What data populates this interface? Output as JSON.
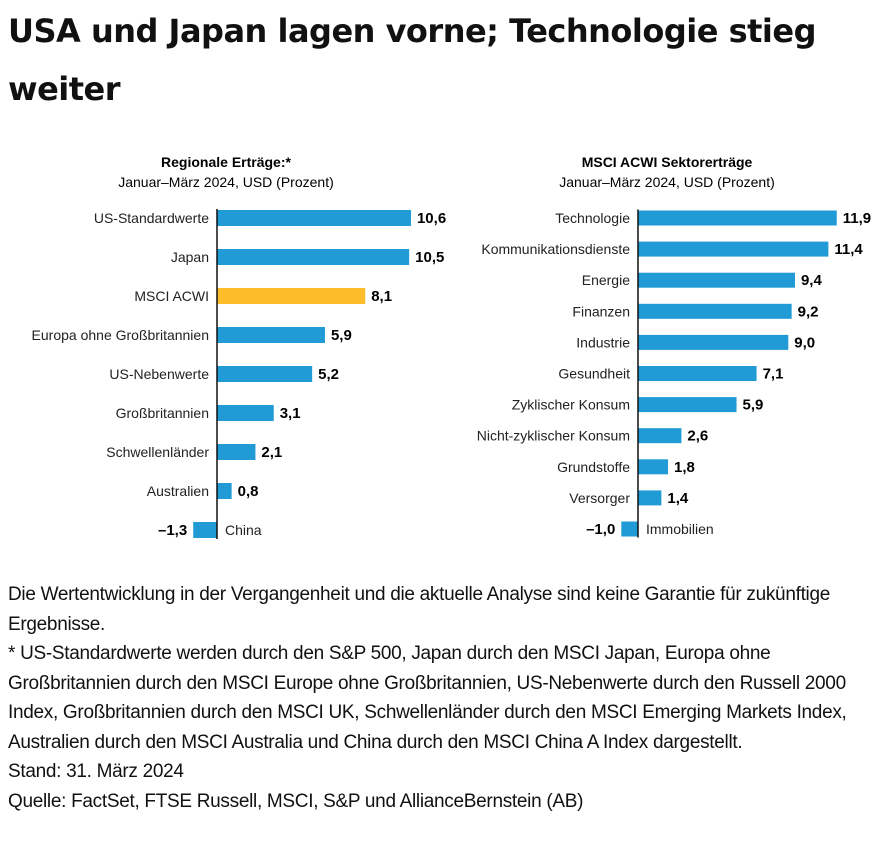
{
  "title": "USA und Japan lagen vorne; Technologie stieg weiter",
  "colors": {
    "bar": "#209bd6",
    "highlight": "#fdbd2a",
    "axis": "#111111"
  },
  "chart_data": [
    {
      "type": "bar",
      "orientation": "horizontal",
      "title": "Regionale Erträge:*",
      "subtitle": "Januar–März 2024, USD (Prozent)",
      "categories": [
        "US-Standardwerte",
        "Japan",
        "MSCI ACWI",
        "Europa ohne Großbritannien",
        "US-Nebenwerte",
        "Großbritannien",
        "Schwellenländer",
        "Australien",
        "China"
      ],
      "values": [
        10.6,
        10.5,
        8.1,
        5.9,
        5.2,
        3.1,
        2.1,
        0.8,
        -1.3
      ],
      "value_labels": [
        "10,6",
        "10,5",
        "8,1",
        "5,9",
        "5,2",
        "3,1",
        "2,1",
        "0,8",
        "–1,3"
      ],
      "highlight": "MSCI ACWI",
      "grid": false
    },
    {
      "type": "bar",
      "orientation": "horizontal",
      "title": "MSCI ACWI Sektorerträge",
      "subtitle": "Januar–März 2024, USD (Prozent)",
      "categories": [
        "Technologie",
        "Kommunikationsdienste",
        "Energie",
        "Finanzen",
        "Industrie",
        "Gesundheit",
        "Zyklischer Konsum",
        "Nicht-zyklischer Konsum",
        "Grundstoffe",
        "Versorger",
        "Immobilien"
      ],
      "values": [
        11.9,
        11.4,
        9.4,
        9.2,
        9.0,
        7.1,
        5.9,
        2.6,
        1.8,
        1.4,
        -1.0
      ],
      "value_labels": [
        "11,9",
        "11,4",
        "9,4",
        "9,2",
        "9,0",
        "7,1",
        "5,9",
        "2,6",
        "1,8",
        "1,4",
        "–1,0"
      ],
      "grid": false
    }
  ],
  "notes": {
    "disclaimer": "Die Wertentwicklung in der Vergangenheit und die aktuelle Analyse sind keine Garantie für zukünftige Ergebnisse.",
    "footnote": "* US-Standardwerte werden durch den S&P 500, Japan durch den MSCI Japan, Europa ohne Großbritannien durch den MSCI Europe ohne Großbritannien, US-Nebenwerte durch den Russell 2000 Index, Großbritannien durch den MSCI UK, Schwellenländer durch den MSCI Emerging Markets Index, Australien durch den MSCI Australia und China durch den MSCI China A Index dargestellt.",
    "date": "Stand: 31. März 2024",
    "source": "Quelle: FactSet, FTSE Russell, MSCI, S&P und AllianceBernstein (AB)"
  }
}
